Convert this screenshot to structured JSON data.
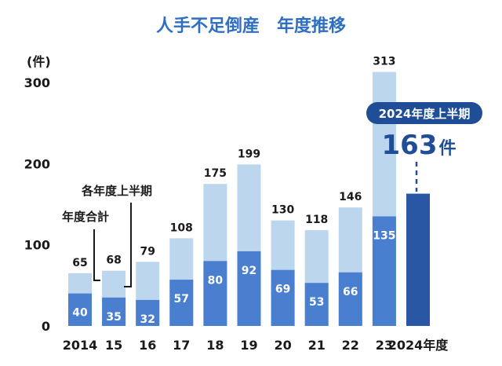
{
  "chart_data": {
    "type": "bar",
    "title": "人手不足倒産　年度推移",
    "ylabel": "(件)",
    "ylim": [
      0,
      300
    ],
    "yticks": [
      "0",
      "100",
      "200",
      "300"
    ],
    "categories": [
      "2014",
      "15",
      "16",
      "17",
      "18",
      "19",
      "20",
      "21",
      "22",
      "23",
      "2024年度"
    ],
    "series": [
      {
        "name": "年度合計",
        "values": [
          65,
          68,
          79,
          108,
          175,
          199,
          130,
          118,
          146,
          313,
          null
        ]
      },
      {
        "name": "各年度上半期",
        "values": [
          40,
          35,
          32,
          57,
          80,
          92,
          69,
          53,
          66,
          135,
          163
        ]
      }
    ],
    "annotations": {
      "highlight_label": "2024年度上半期",
      "highlight_value": "163",
      "highlight_unit": "件"
    },
    "colors": {
      "total": "#bcd6ee",
      "half": "#4a7fcf",
      "highlight": "#2a57a3",
      "title": "#2f6fc2",
      "pill": "#1f4e96"
    }
  }
}
